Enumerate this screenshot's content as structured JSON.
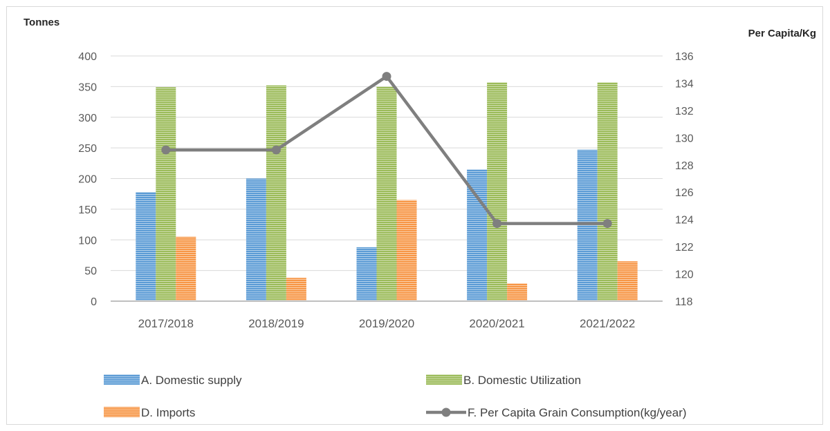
{
  "colors": {
    "domestic_supply": "#5b9bd5",
    "domestic_utilization": "#9bbb59",
    "imports": "#f79646",
    "per_capita": "#7f7f7f",
    "axis": "#bfbfbf",
    "tick_text": "#595959"
  },
  "chart_data": {
    "type": "bar",
    "categories": [
      "2017/2018",
      "2018/2019",
      "2019/2020",
      "2020/2021",
      "2021/2022"
    ],
    "y_left": {
      "title": "Tonnes",
      "range": [
        0,
        400
      ],
      "ticks": [
        0,
        50,
        100,
        150,
        200,
        250,
        300,
        350,
        400
      ]
    },
    "y_right": {
      "title": "Per Capita/Kg",
      "range": [
        118,
        136
      ],
      "ticks": [
        118,
        120,
        122,
        124,
        126,
        128,
        130,
        132,
        134,
        136
      ]
    },
    "series": [
      {
        "name": "A. Domestic supply",
        "type": "bar",
        "axis": "left",
        "color_key": "domestic_supply",
        "values": [
          178,
          200,
          88,
          215,
          247
        ]
      },
      {
        "name": "B. Domestic Utilization",
        "type": "bar",
        "axis": "left",
        "color_key": "domestic_utilization",
        "values": [
          349,
          352,
          350,
          357,
          357
        ]
      },
      {
        "name": "D. Imports",
        "type": "bar",
        "axis": "left",
        "color_key": "imports",
        "values": [
          105,
          38,
          165,
          29,
          65
        ]
      },
      {
        "name": "F. Per Capita Grain Consumption(kg/year)",
        "type": "line",
        "axis": "right",
        "color_key": "per_capita",
        "values": [
          129.1,
          129.1,
          134.5,
          123.7,
          123.7
        ]
      }
    ],
    "grid": true,
    "legend_position": "bottom"
  }
}
